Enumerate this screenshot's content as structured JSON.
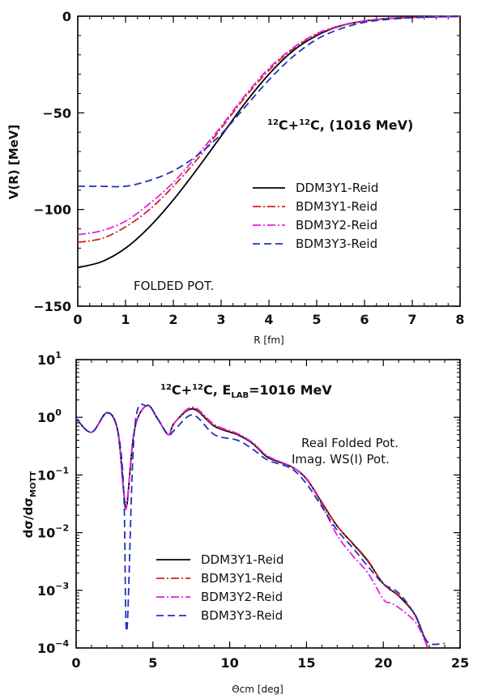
{
  "chart_data": [
    {
      "type": "line",
      "xlabel": "R [fm]",
      "ylabel": "V(R) [MeV]",
      "xlim": [
        0,
        8
      ],
      "ylim": [
        -150,
        0
      ],
      "xticks": [
        "0",
        "1",
        "2",
        "3",
        "4",
        "5",
        "6",
        "7",
        "8"
      ],
      "yticks": [
        "0",
        "−50",
        "−100",
        "−150"
      ],
      "title_parts": {
        "a_mass": "12",
        "a_sym": "C+",
        "b_mass": "12",
        "b_sym": "C, (1016 MeV)"
      },
      "annotation": "FOLDED POT.",
      "legend_position": "center-right",
      "series": [
        {
          "name": "DDM3Y1-Reid",
          "color": "#000000",
          "dash": "solid",
          "x": [
            0,
            0.5,
            1,
            1.5,
            2,
            2.5,
            3,
            3.5,
            4,
            4.5,
            5,
            5.5,
            6,
            6.5,
            7,
            7.5,
            8
          ],
          "y": [
            -130,
            -127,
            -120,
            -109,
            -95,
            -79,
            -62,
            -45,
            -30,
            -18,
            -10,
            -5,
            -2.5,
            -1.2,
            -0.6,
            -0.3,
            -0.1
          ]
        },
        {
          "name": "BDM3Y1-Reid",
          "color": "#d42020",
          "dash": "dashdot",
          "x": [
            0,
            0.5,
            1,
            1.5,
            2,
            2.5,
            3,
            3.5,
            4,
            4.5,
            5,
            5.5,
            6,
            6.5,
            7,
            7.5,
            8
          ],
          "y": [
            -117,
            -115,
            -109,
            -100,
            -88,
            -74,
            -58,
            -42,
            -28,
            -17,
            -9.5,
            -5,
            -2.5,
            -1.2,
            -0.6,
            -0.3,
            -0.1
          ]
        },
        {
          "name": "BDM3Y2-Reid",
          "color": "#e020e0",
          "dash": "dashdot",
          "x": [
            0,
            0.5,
            1,
            1.5,
            2,
            2.5,
            3,
            3.5,
            4,
            4.5,
            5,
            5.5,
            6,
            6.5,
            7,
            7.5,
            8
          ],
          "y": [
            -113,
            -111,
            -106,
            -97,
            -86,
            -72,
            -57,
            -41,
            -27,
            -16.5,
            -9,
            -4.8,
            -2.4,
            -1.2,
            -0.6,
            -0.3,
            -0.1
          ]
        },
        {
          "name": "BDM3Y3-Reid",
          "color": "#2030c0",
          "dash": "dashed",
          "x": [
            0,
            0.5,
            1,
            1.5,
            2,
            2.5,
            3,
            3.5,
            4,
            4.5,
            5,
            5.5,
            6,
            6.5,
            7,
            7.5,
            8
          ],
          "y": [
            -88,
            -88,
            -88,
            -85,
            -80,
            -72,
            -61,
            -47,
            -33,
            -21,
            -12,
            -6.5,
            -3.2,
            -1.6,
            -0.8,
            -0.4,
            -0.1
          ]
        }
      ]
    },
    {
      "type": "line",
      "xlabel": "Θcm [deg]",
      "ylabel_parts": {
        "main": "dσ/dσ",
        "sub": "MOTT"
      },
      "xlim": [
        0,
        25
      ],
      "ylim": [
        0.0001,
        10
      ],
      "yscale": "log",
      "xticks": [
        "0",
        "5",
        "10",
        "15",
        "20",
        "25"
      ],
      "yticks": [
        {
          "base": "10",
          "exp": "1"
        },
        {
          "base": "10",
          "exp": "0"
        },
        {
          "base": "10",
          "exp": "−1"
        },
        {
          "base": "10",
          "exp": "−2"
        },
        {
          "base": "10",
          "exp": "−3"
        },
        {
          "base": "10",
          "exp": "−4"
        }
      ],
      "title_parts": {
        "a_mass": "12",
        "a_sym": "C+",
        "b_mass": "12",
        "b_sym": "C, E",
        "e_sub": "LAB",
        "e_rest": "=1016 MeV"
      },
      "annotations": [
        "Real Folded Pot.",
        "Imag. WS(I) Pot."
      ],
      "legend_position": "lower-left",
      "series": [
        {
          "name": "DDM3Y1-Reid",
          "color": "#000000",
          "dash": "solid",
          "x": [
            0,
            1,
            2,
            2.7,
            3.1,
            3.3,
            3.8,
            4.6,
            5.3,
            6,
            6.4,
            7.6,
            9,
            10.5,
            11.5,
            12.5,
            14,
            15,
            16,
            17,
            18,
            19,
            20,
            21,
            22,
            22.5,
            22.9
          ],
          "y": [
            0.95,
            0.55,
            1.2,
            0.6,
            0.05,
            0.03,
            0.6,
            1.6,
            0.95,
            0.5,
            0.8,
            1.4,
            0.7,
            0.5,
            0.35,
            0.2,
            0.14,
            0.085,
            0.033,
            0.013,
            0.0065,
            0.0032,
            0.0013,
            0.0008,
            0.0004,
            0.0002,
            0.0001
          ]
        },
        {
          "name": "BDM3Y1-Reid",
          "color": "#d42020",
          "dash": "dashdot",
          "x": [
            0,
            1,
            2,
            2.7,
            3.1,
            3.3,
            3.8,
            4.6,
            5.3,
            6,
            6.4,
            7.6,
            9,
            10.5,
            11.5,
            12.5,
            14,
            15,
            16,
            17,
            18,
            19,
            20,
            21,
            22,
            22.5,
            22.9
          ],
          "y": [
            0.95,
            0.55,
            1.2,
            0.6,
            0.05,
            0.03,
            0.6,
            1.6,
            0.95,
            0.5,
            0.8,
            1.45,
            0.72,
            0.52,
            0.36,
            0.21,
            0.14,
            0.087,
            0.034,
            0.013,
            0.0066,
            0.0033,
            0.0013,
            0.00082,
            0.00041,
            0.0002,
            0.0001
          ]
        },
        {
          "name": "BDM3Y2-Reid",
          "color": "#e020e0",
          "dash": "dashdot",
          "x": [
            0,
            1,
            2,
            2.7,
            3.1,
            3.3,
            3.8,
            4.6,
            5.3,
            6,
            6.4,
            7.6,
            9,
            10.5,
            11.5,
            12.5,
            14,
            15,
            16,
            17,
            18,
            19,
            20,
            20.5,
            21,
            22,
            22.5,
            22.9
          ],
          "y": [
            0.95,
            0.55,
            1.2,
            0.6,
            0.05,
            0.03,
            0.6,
            1.6,
            0.95,
            0.5,
            0.8,
            1.5,
            0.75,
            0.52,
            0.36,
            0.21,
            0.14,
            0.087,
            0.03,
            0.009,
            0.004,
            0.002,
            0.0007,
            0.0006,
            0.0005,
            0.0003,
            0.00018,
            0.0001
          ]
        },
        {
          "name": "BDM3Y3-Reid",
          "color": "#2030c0",
          "dash": "dashed",
          "x": [
            0,
            1,
            2,
            2.7,
            3.1,
            3.3,
            3.8,
            4.6,
            5.3,
            6,
            6.4,
            7.6,
            9,
            10.5,
            11.5,
            12.5,
            14,
            15,
            16,
            17,
            18,
            19,
            20,
            21,
            22,
            22.5,
            23,
            24
          ],
          "y": [
            0.95,
            0.55,
            1.2,
            0.6,
            0.05,
            0.0002,
            0.6,
            1.6,
            0.95,
            0.5,
            0.6,
            1.1,
            0.5,
            0.4,
            0.28,
            0.18,
            0.13,
            0.07,
            0.028,
            0.011,
            0.0055,
            0.0026,
            0.0013,
            0.0009,
            0.0004,
            0.0002,
            0.00012,
            0.00012
          ]
        }
      ]
    }
  ]
}
